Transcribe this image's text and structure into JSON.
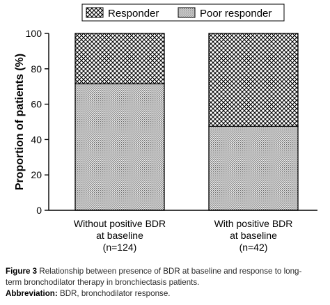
{
  "chart_data": {
    "type": "bar",
    "stacked": true,
    "categories": [
      [
        "Without positive BDR",
        "at baseline",
        "(n=124)"
      ],
      [
        "With positive BDR",
        "at baseline",
        "(n=42)"
      ]
    ],
    "series": [
      {
        "name": "Poor responder",
        "values": [
          71.5,
          47.5
        ],
        "pattern": "fine-stipple"
      },
      {
        "name": "Responder",
        "values": [
          28.5,
          52.5
        ],
        "pattern": "crosshatch"
      }
    ],
    "legend_order": [
      "Responder",
      "Poor responder"
    ],
    "legend_position": "top",
    "ylabel": "Proportion of patients (%)",
    "xlabel": "",
    "ylim": [
      0,
      100
    ],
    "yticks": [
      "0",
      "20",
      "40",
      "60",
      "80",
      "100"
    ],
    "grid": false
  },
  "caption": {
    "figure_label": "Figure 3",
    "figure_text_line1": " Relationship between presence of BDR at baseline and response to long-",
    "figure_text_line2": "term bronchodilator therapy in bronchiectasis patients.",
    "abbrev_label": "Abbreviation:",
    "abbrev_text": " BDR, bronchodilator response."
  }
}
